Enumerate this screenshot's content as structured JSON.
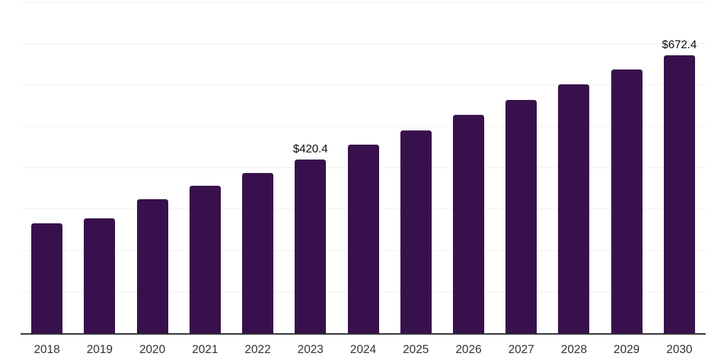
{
  "chart_data": {
    "type": "bar",
    "categories": [
      "2018",
      "2019",
      "2020",
      "2021",
      "2022",
      "2023",
      "2024",
      "2025",
      "2026",
      "2027",
      "2028",
      "2029",
      "2030"
    ],
    "values": [
      265,
      278,
      324,
      357,
      387,
      420.4,
      455,
      490,
      527,
      563,
      601,
      637,
      672.4
    ],
    "data_labels": [
      "",
      "",
      "",
      "",
      "",
      "$420.4",
      "",
      "",
      "",
      "",
      "",
      "",
      "$672.4"
    ],
    "title": "",
    "xlabel": "",
    "ylabel": "",
    "ylim": [
      0,
      800
    ],
    "gridline_step": 100,
    "grid_on": true,
    "legend": "none",
    "colors": {
      "bar": "#38114c",
      "gridline": "#f1f1f4",
      "axis_line": "#303036",
      "tick_label": "#333333",
      "data_label": "#0a0a0a",
      "background": "#ffffff"
    }
  }
}
